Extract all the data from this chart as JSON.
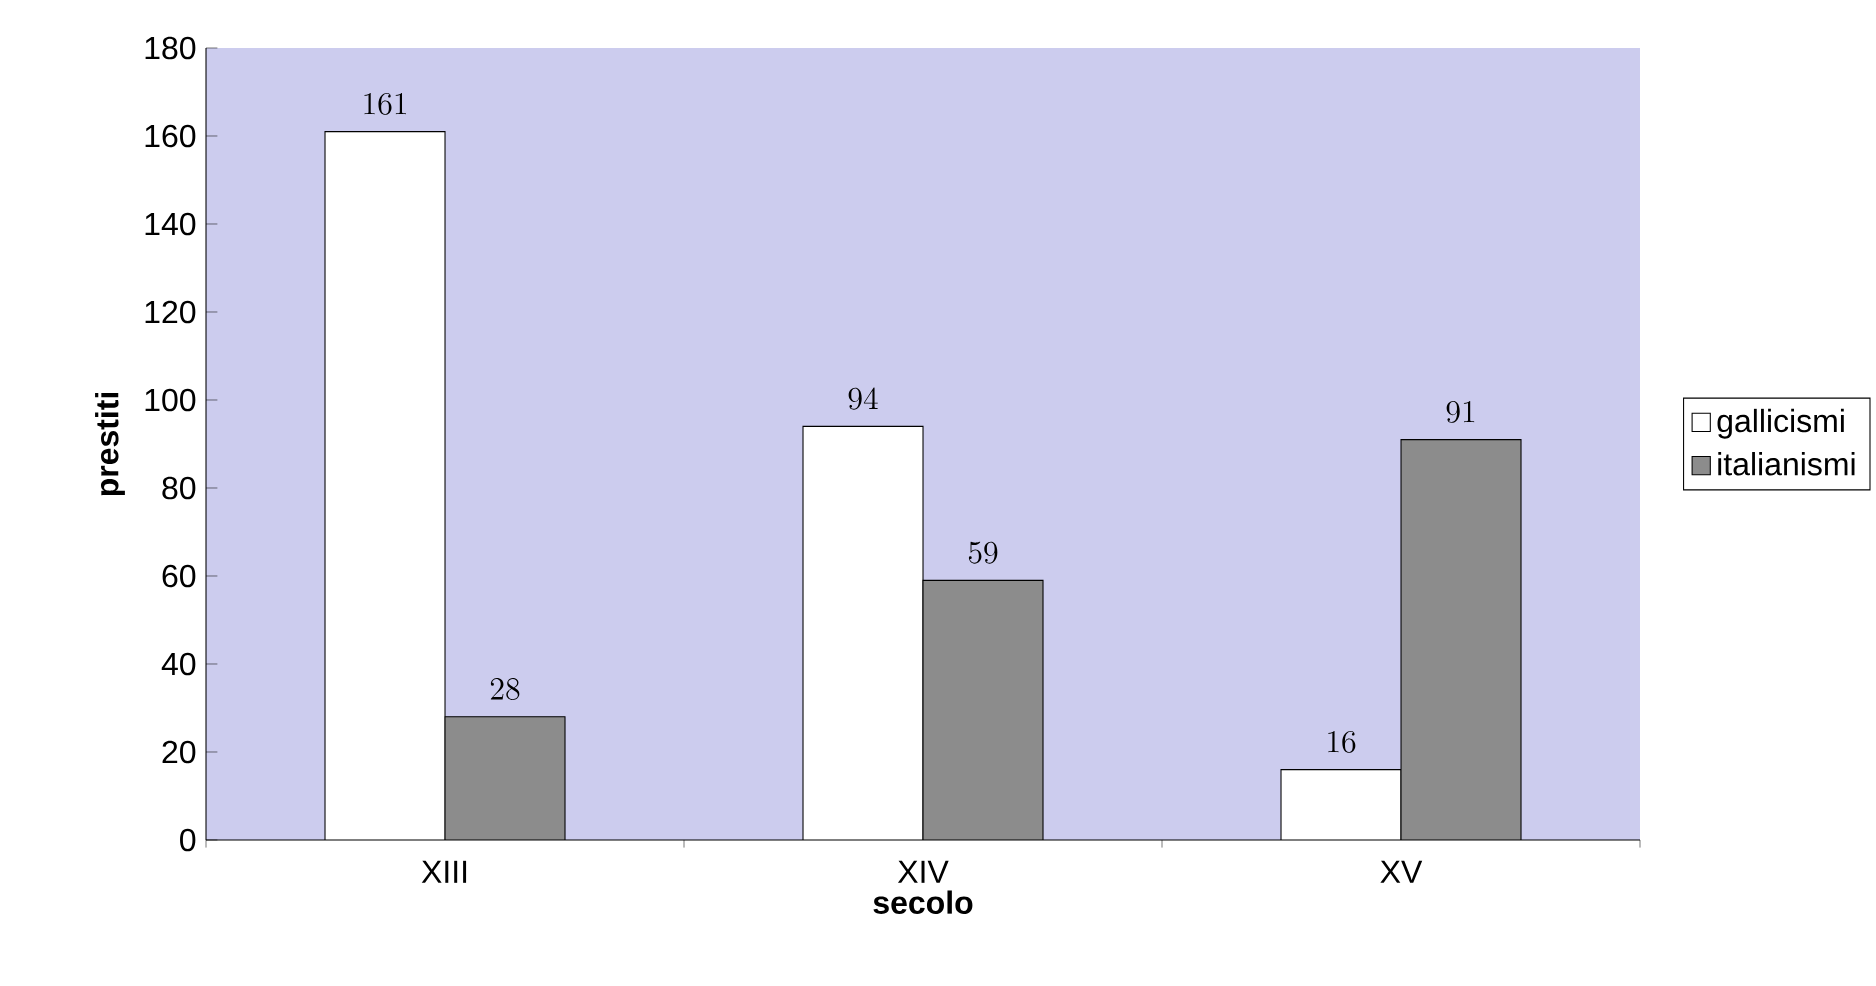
{
  "chart_data": {
    "type": "bar",
    "xlabel": "secolo",
    "ylabel": "prestiti",
    "categories": [
      "XIII",
      "XIV",
      "XV"
    ],
    "series": [
      {
        "name": "gallicismi",
        "color": "#ffffff",
        "values": [
          161,
          94,
          16
        ]
      },
      {
        "name": "italianismi",
        "color": "#8c8c8c",
        "values": [
          28,
          59,
          91
        ]
      }
    ],
    "ylim": [
      0,
      180
    ],
    "yticks": [
      0,
      20,
      40,
      60,
      80,
      100,
      120,
      140,
      160,
      180
    ],
    "data_labels": true,
    "legend": "right",
    "grid": false
  }
}
